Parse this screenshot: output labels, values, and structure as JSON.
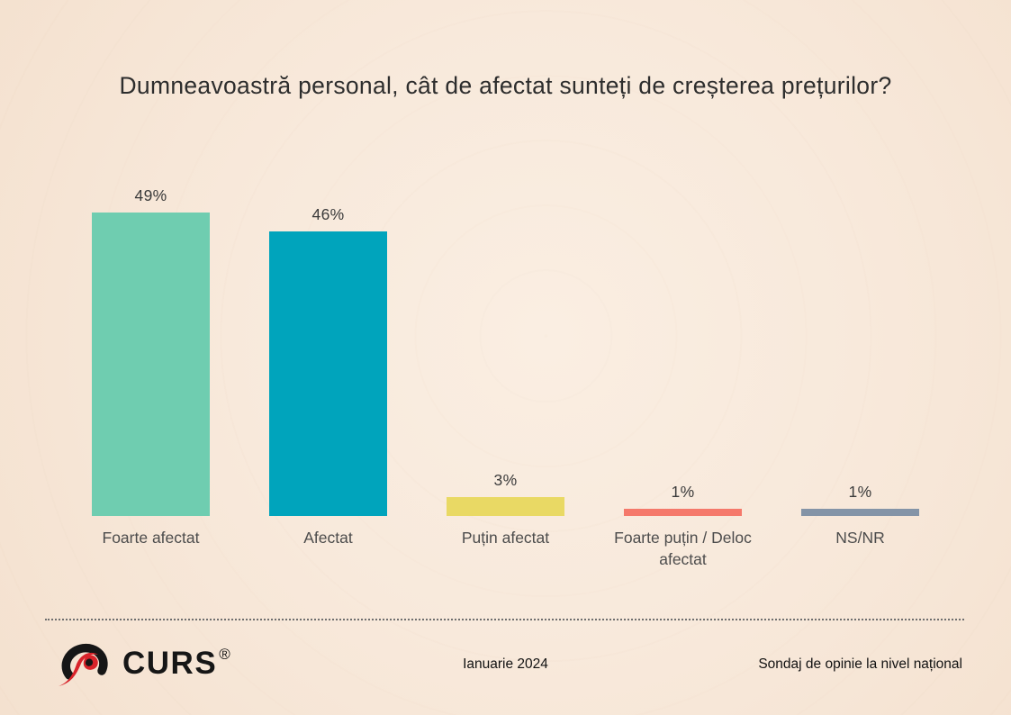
{
  "title": "Dumneavoastră personal, cât de afectat sunteți de creșterea prețurilor?",
  "chart_data": {
    "type": "bar",
    "title": "Dumneavoastră personal, cât de afectat sunteți de creșterea prețurilor?",
    "categories": [
      "Foarte afectat",
      "Afectat",
      "Puțin afectat",
      "Foarte puțin / Deloc afectat",
      "NS/NR"
    ],
    "values": [
      49,
      46,
      3,
      1,
      1
    ],
    "value_labels": [
      "49%",
      "46%",
      "3%",
      "1%",
      "1%"
    ],
    "bar_colors": [
      "#6FCDB0",
      "#00A4BC",
      "#E9D964",
      "#F5796B",
      "#8494A7"
    ],
    "xlabel": "",
    "ylabel": "",
    "ylim": [
      0,
      55
    ],
    "grid": false,
    "legend": false,
    "value_label_position": "above-bar"
  },
  "footer": {
    "logo_text": "CURS",
    "logo_registered": "®",
    "date": "Ianuarie 2024",
    "note": "Sondaj de opinie la nivel național"
  },
  "colors": {
    "background": "#F8E9DB",
    "title_text": "#2D2D2D",
    "category_label_text": "#4C4C4C",
    "value_label_text": "#3B3B3B",
    "divider_dotted": "#6E6E6E",
    "logo_black": "#161616",
    "logo_red": "#D8232A"
  }
}
